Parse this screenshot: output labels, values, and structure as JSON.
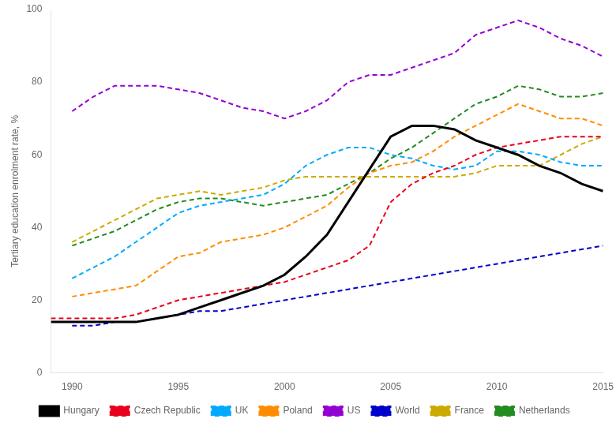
{
  "chart_data": {
    "type": "line",
    "y_label": "Tertiary education enrolment rate, %",
    "x": [
      1989,
      1990,
      1991,
      1992,
      1993,
      1994,
      1995,
      1996,
      1997,
      1998,
      1999,
      2000,
      2001,
      2002,
      2003,
      2004,
      2005,
      2006,
      2007,
      2008,
      2009,
      2010,
      2011,
      2012,
      2013,
      2014,
      2015
    ],
    "series": [
      {
        "name": "Czech Republic",
        "color": "#e8001c",
        "line_style": "dashed",
        "values": [
          15,
          15,
          15,
          15,
          16,
          18,
          20,
          21,
          22,
          23,
          24,
          25,
          27,
          29,
          31,
          35,
          47,
          52,
          55,
          57,
          60,
          62,
          63,
          64,
          65,
          65,
          65
        ]
      },
      {
        "name": "UK",
        "color": "#00aaff",
        "line_style": "dashed",
        "values": [
          null,
          26,
          29,
          32,
          36,
          40,
          44,
          46,
          47,
          48,
          49,
          52,
          57,
          60,
          62,
          62,
          60,
          59,
          57,
          56,
          57,
          61,
          61,
          60,
          58,
          57,
          57
        ]
      },
      {
        "name": "Hungary",
        "color": "#000000",
        "line_style": "solid",
        "values": [
          14,
          14,
          14,
          14,
          14,
          15,
          16,
          18,
          20,
          22,
          24,
          27,
          32,
          38,
          47,
          56,
          65,
          68,
          68,
          67,
          64,
          62,
          60,
          57,
          55,
          52,
          50
        ]
      },
      {
        "name": "Poland",
        "color": "#ff8c00",
        "line_style": "dashed",
        "values": [
          null,
          21,
          22,
          23,
          24,
          28,
          32,
          33,
          36,
          37,
          38,
          40,
          43,
          46,
          51,
          55,
          57,
          58,
          61,
          65,
          68,
          71,
          74,
          72,
          70,
          70,
          68
        ]
      },
      {
        "name": "US",
        "color": "#9400d3",
        "line_style": "dashed",
        "values": [
          null,
          72,
          76,
          79,
          79,
          79,
          78,
          77,
          75,
          73,
          72,
          70,
          72,
          75,
          80,
          82,
          82,
          84,
          86,
          88,
          93,
          95,
          97,
          95,
          92,
          90,
          87
        ]
      },
      {
        "name": "World",
        "color": "#0000cc",
        "line_style": "dashed",
        "values": [
          null,
          13,
          13,
          14,
          14,
          15,
          16,
          17,
          17,
          18,
          19,
          20,
          21,
          22,
          23,
          24,
          25,
          26,
          27,
          28,
          29,
          30,
          31,
          32,
          33,
          34,
          35
        ]
      },
      {
        "name": "France",
        "color": "#ccaa00",
        "line_style": "dashed",
        "values": [
          null,
          36,
          39,
          42,
          45,
          48,
          49,
          50,
          49,
          50,
          51,
          53,
          54,
          54,
          54,
          54,
          54,
          54,
          54,
          54,
          55,
          57,
          57,
          57,
          60,
          63,
          65
        ]
      },
      {
        "name": "Netherlands",
        "color": "#228b22",
        "line_style": "dashed",
        "values": [
          null,
          35,
          37,
          39,
          42,
          45,
          47,
          48,
          48,
          47,
          46,
          47,
          48,
          49,
          52,
          55,
          59,
          62,
          66,
          70,
          74,
          76,
          79,
          78,
          76,
          76,
          77
        ]
      }
    ],
    "xlim": [
      1989,
      2015
    ],
    "xticks": [
      1990,
      1995,
      2000,
      2005,
      2010,
      2015
    ],
    "ylim": [
      0,
      100
    ],
    "yticks": [
      0,
      20,
      40,
      60,
      80,
      100
    ],
    "grid": false,
    "legend": "bottom"
  }
}
